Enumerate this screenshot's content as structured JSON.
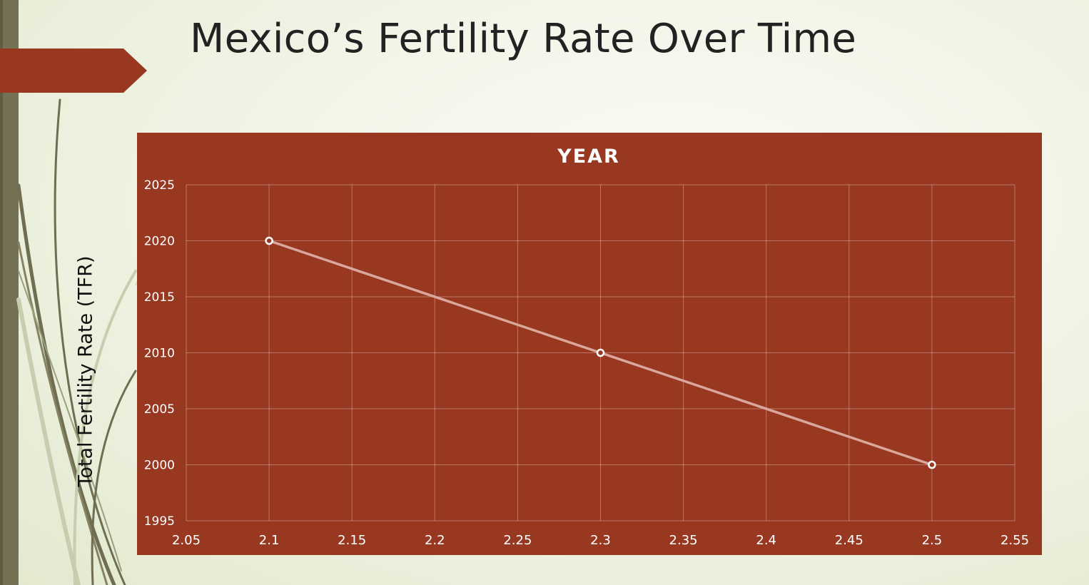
{
  "slide": {
    "title": "Mexico’s Fertility Rate Over Time"
  },
  "colors": {
    "accent_bar": "#983820",
    "chart_background": "#983820",
    "left_bar": "#747155",
    "line": "#d9a79b",
    "marker_fill": "#983820",
    "marker_stroke": "#ffffff",
    "text_light": "#ffffff",
    "text_dark": "#111111"
  },
  "chart_data": {
    "type": "scatter",
    "title": "YEAR",
    "xlabel": "",
    "ylabel": "Total Fertility Rate (TFR)",
    "xlim": [
      2.05,
      2.55
    ],
    "ylim": [
      1995,
      2025
    ],
    "x_ticks": [
      "2.05",
      "2.1",
      "2.15",
      "2.2",
      "2.25",
      "2.3",
      "2.35",
      "2.4",
      "2.45",
      "2.5",
      "2.55"
    ],
    "y_ticks": [
      "1995",
      "2000",
      "2005",
      "2010",
      "2015",
      "2020",
      "2025"
    ],
    "grid": true,
    "legend": "none",
    "series": [
      {
        "x": [
          2.1,
          2.3,
          2.5
        ],
        "y": [
          2020,
          2010,
          2000
        ],
        "lines": true,
        "markers": true
      }
    ]
  }
}
